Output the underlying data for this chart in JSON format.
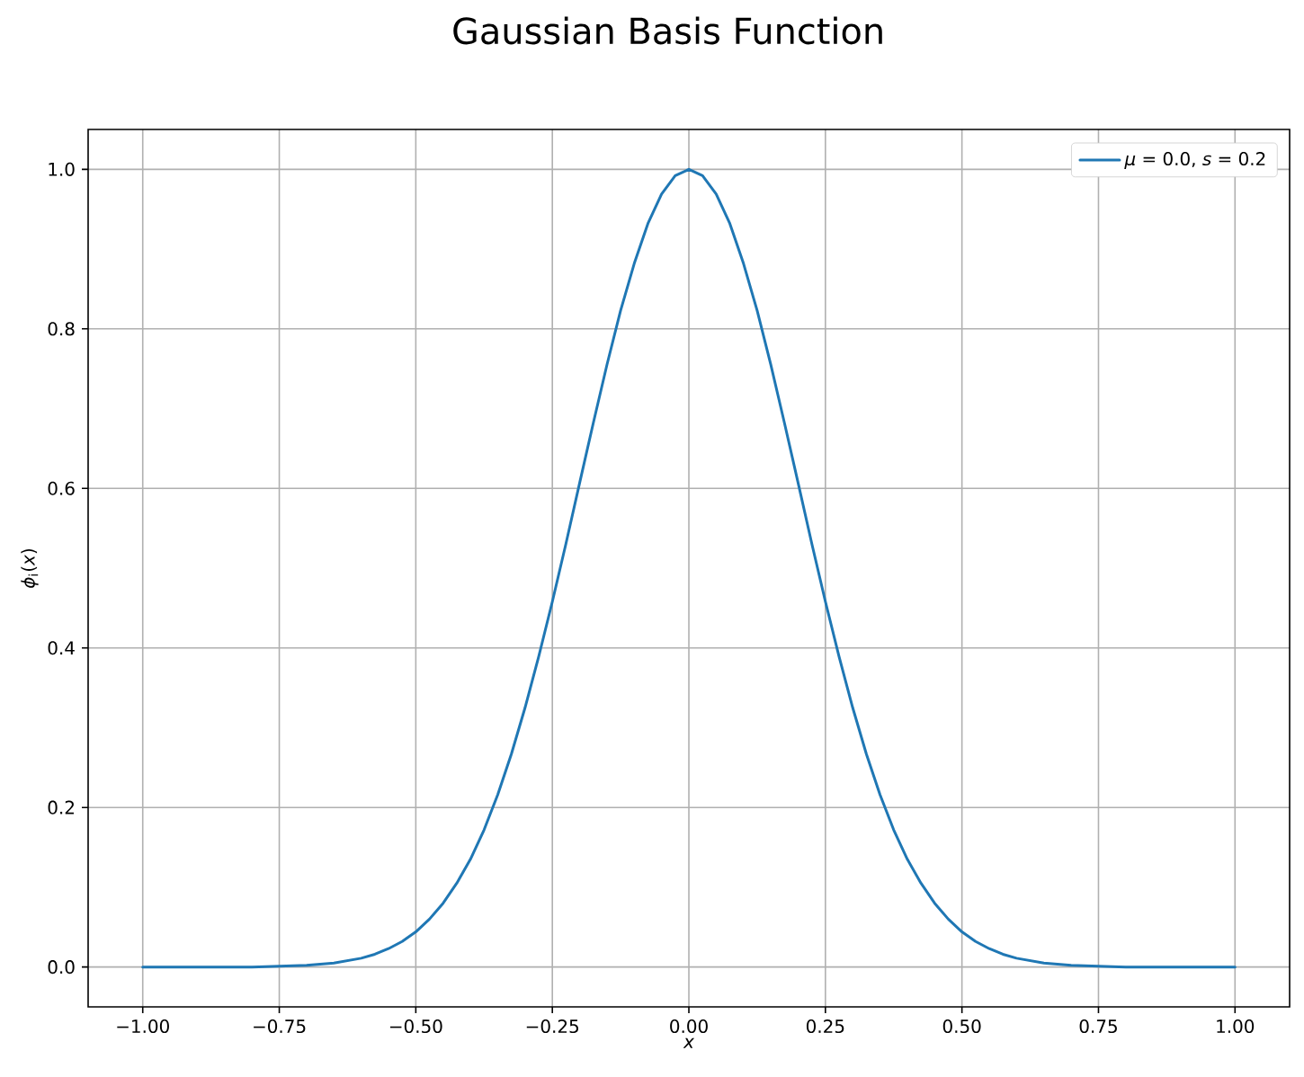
{
  "chart_data": {
    "type": "line",
    "title": "Gaussian Basis Function",
    "xlabel": "x",
    "ylabel": "*ϕ*$_{i}$(*x*)",
    "x": [
      -1,
      -0.9,
      -0.8,
      -0.75,
      -0.7,
      -0.65,
      -0.6,
      -0.575,
      -0.55,
      -0.525,
      -0.5,
      -0.475,
      -0.45,
      -0.425,
      -0.4,
      -0.375,
      -0.35,
      -0.325,
      -0.3,
      -0.275,
      -0.25,
      -0.225,
      -0.2,
      -0.175,
      -0.15,
      -0.125,
      -0.1,
      -0.075,
      -0.05,
      -0.025,
      0,
      0.025,
      0.05,
      0.075,
      0.1,
      0.125,
      0.15,
      0.175,
      0.2,
      0.225,
      0.25,
      0.275,
      0.3,
      0.325,
      0.35,
      0.375,
      0.4,
      0.425,
      0.45,
      0.475,
      0.5,
      0.525,
      0.55,
      0.575,
      0.6,
      0.65,
      0.7,
      0.75,
      0.8,
      0.9,
      1
    ],
    "series": [
      {
        "name": "*μ* = 0.0, *s* = 0.2",
        "color": "#1f77b4",
        "values": [
          0.0,
          0.0,
          0.0,
          0.001,
          0.002,
          0.005,
          0.011,
          0.016,
          0.023,
          0.032,
          0.044,
          0.06,
          0.08,
          0.105,
          0.135,
          0.172,
          0.216,
          0.267,
          0.325,
          0.389,
          0.458,
          0.531,
          0.607,
          0.682,
          0.755,
          0.823,
          0.882,
          0.932,
          0.969,
          0.992,
          1.0,
          0.992,
          0.969,
          0.932,
          0.882,
          0.823,
          0.755,
          0.682,
          0.607,
          0.531,
          0.458,
          0.389,
          0.325,
          0.267,
          0.216,
          0.172,
          0.135,
          0.105,
          0.08,
          0.06,
          0.044,
          0.032,
          0.023,
          0.016,
          0.011,
          0.005,
          0.002,
          0.001,
          0.0,
          0.0,
          0.0
        ]
      }
    ],
    "xlim": [
      -1.1,
      1.1
    ],
    "ylim": [
      -0.05,
      1.05
    ],
    "xticks": [
      {
        "value": -1,
        "label": "−1.00"
      },
      {
        "value": -0.75,
        "label": "−0.75"
      },
      {
        "value": -0.5,
        "label": "−0.50"
      },
      {
        "value": -0.25,
        "label": "−0.25"
      },
      {
        "value": 0,
        "label": "0.00"
      },
      {
        "value": 0.25,
        "label": "0.25"
      },
      {
        "value": 0.5,
        "label": "0.50"
      },
      {
        "value": 0.75,
        "label": "0.75"
      },
      {
        "value": 1,
        "label": "1.00"
      }
    ],
    "yticks": [
      {
        "value": 0,
        "label": "0.0"
      },
      {
        "value": 0.2,
        "label": "0.2"
      },
      {
        "value": 0.4,
        "label": "0.4"
      },
      {
        "value": 0.6,
        "label": "0.6"
      },
      {
        "value": 0.8,
        "label": "0.8"
      },
      {
        "value": 1,
        "label": "1.0"
      }
    ],
    "grid": true,
    "legend": "top right",
    "line_style": "solid"
  }
}
